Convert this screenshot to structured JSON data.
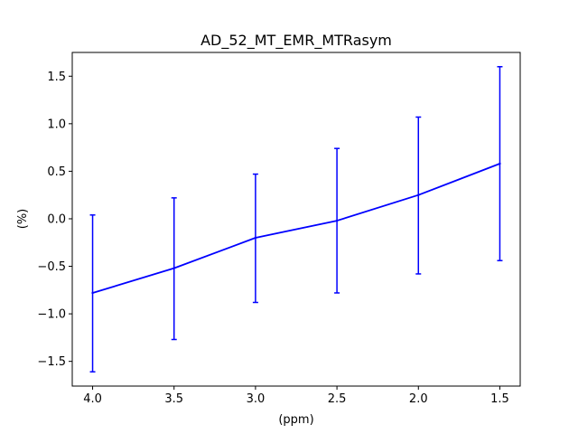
{
  "chart_data": {
    "type": "line",
    "title": "AD_52_MT_EMR_MTRasym",
    "xlabel": "(ppm)",
    "ylabel": "(%)",
    "x_reversed": true,
    "xlim": [
      4.125,
      1.375
    ],
    "ylim": [
      -1.76,
      1.75
    ],
    "x_ticks": [
      4.0,
      3.5,
      3.0,
      2.5,
      2.0,
      1.5
    ],
    "x_tick_labels": [
      "4.0",
      "3.5",
      "3.0",
      "2.5",
      "2.0",
      "1.5"
    ],
    "y_ticks": [
      -1.5,
      -1.0,
      -0.5,
      0.0,
      0.5,
      1.0,
      1.5
    ],
    "y_tick_labels": [
      "−1.5",
      "−1.0",
      "−0.5",
      "0.0",
      "0.5",
      "1.0",
      "1.5"
    ],
    "grid": false,
    "series": [
      {
        "color": "#0000ff",
        "x": [
          4.0,
          3.5,
          3.0,
          2.5,
          2.0,
          1.5
        ],
        "y": [
          -0.78,
          -0.52,
          -0.2,
          -0.02,
          0.25,
          0.58
        ],
        "y_lower": [
          -1.61,
          -1.27,
          -0.88,
          -0.78,
          -0.58,
          -0.44
        ],
        "y_upper": [
          0.04,
          0.22,
          0.47,
          0.74,
          1.07,
          1.6
        ]
      }
    ]
  }
}
